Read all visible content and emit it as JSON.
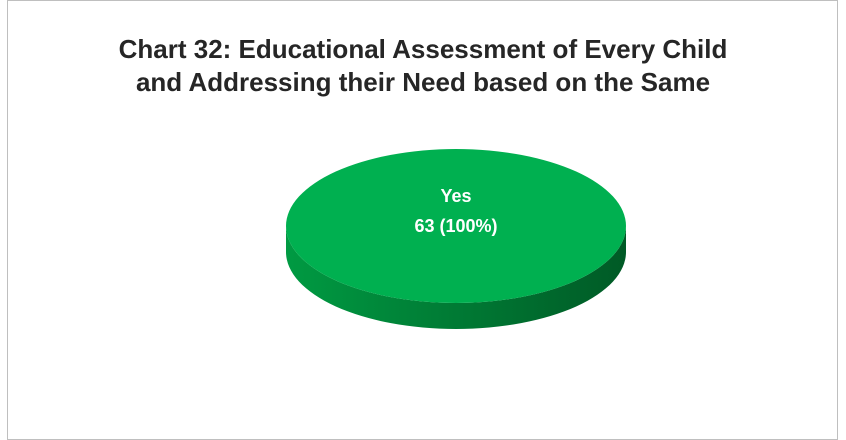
{
  "chart_data": {
    "type": "pie",
    "title_lines": [
      "Chart 32: Educational Assessment of Every Child",
      "and Addressing their Need based on the Same"
    ],
    "slices": [
      {
        "label": "Yes",
        "value": 63,
        "percent": 100,
        "value_text": "63 (100%)",
        "color": "#00b050"
      }
    ],
    "style": "3d",
    "legend": "none"
  }
}
